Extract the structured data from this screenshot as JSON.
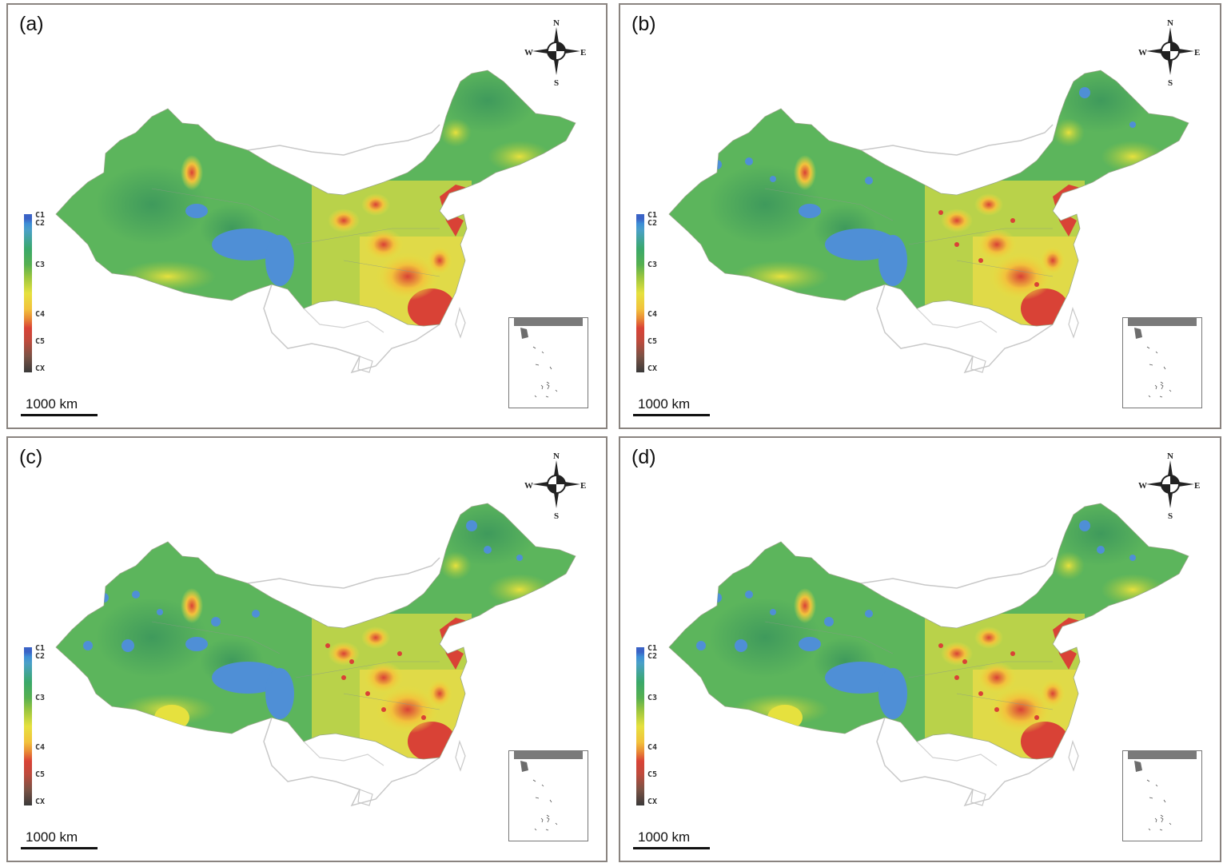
{
  "panels": [
    {
      "id": "a",
      "label": "(a)"
    },
    {
      "id": "b",
      "label": "(b)"
    },
    {
      "id": "c",
      "label": "(c)"
    },
    {
      "id": "d",
      "label": "(d)"
    }
  ],
  "compass": {
    "n": "N",
    "s": "S",
    "e": "E",
    "w": "W"
  },
  "legend": [
    "C1",
    "C2",
    "C3",
    "C4",
    "C5",
    "CX"
  ],
  "legend_colors": {
    "C1": "#3a63c6",
    "C2": "#3d8fd6",
    "C3": "#56b050",
    "C4": "#f2c23c",
    "C5": "#d94236",
    "CX": "#3a3a3a"
  },
  "scale_label": "1000 km"
}
